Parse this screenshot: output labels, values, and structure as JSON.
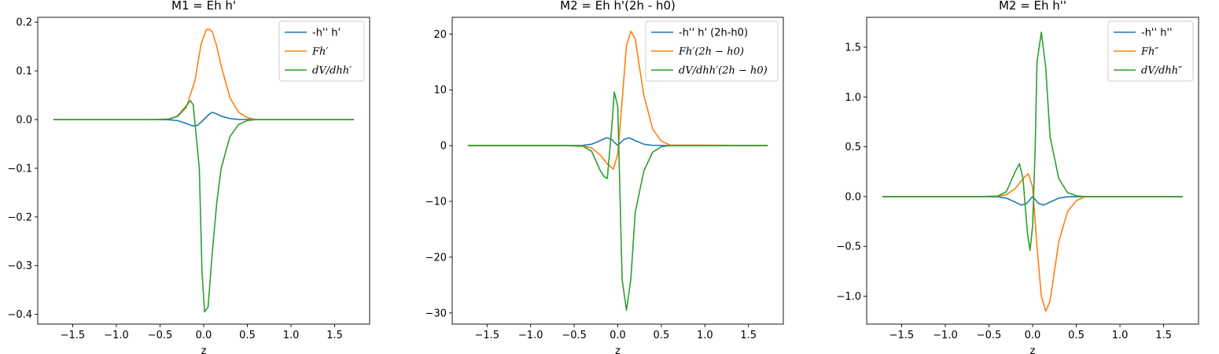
{
  "chart_data": [
    {
      "type": "line",
      "title": "M1 = Eh h'",
      "xlabel": "z",
      "ylabel": "",
      "xlim": [
        -1.9,
        1.9
      ],
      "ylim": [
        -0.42,
        0.21
      ],
      "xticks": [
        -1.5,
        -1.0,
        -0.5,
        0.0,
        0.5,
        1.0,
        1.5
      ],
      "xtick_labels": [
        "−1.5",
        "−1.0",
        "−0.5",
        "0.0",
        "0.5",
        "1.0",
        "1.5"
      ],
      "yticks": [
        -0.4,
        -0.3,
        -0.2,
        -0.1,
        0.0,
        0.1,
        0.2
      ],
      "ytick_labels": [
        "−0.4",
        "−0.3",
        "−0.2",
        "−0.1",
        "0.0",
        "0.1",
        "0.2"
      ],
      "legend_position": "top-right",
      "series": [
        {
          "name": "-h'' h'",
          "color": "#1f77b4",
          "x": [
            -1.72,
            -0.6,
            -0.4,
            -0.3,
            -0.2,
            -0.13,
            -0.07,
            0,
            0.07,
            0.1,
            0.13,
            0.2,
            0.3,
            0.4,
            0.6,
            1.72
          ],
          "y": [
            0,
            0,
            -0.0003,
            -0.002,
            -0.008,
            -0.013,
            -0.012,
            0,
            0.012,
            0.015,
            0.013,
            0.007,
            0.002,
            0.0003,
            0,
            0
          ]
        },
        {
          "name": "Fh′",
          "color": "#ff7f0e",
          "x": [
            -1.72,
            -0.6,
            -0.4,
            -0.3,
            -0.2,
            -0.1,
            -0.03,
            0.03,
            0.07,
            0.1,
            0.15,
            0.2,
            0.3,
            0.4,
            0.5,
            0.6,
            1.72
          ],
          "y": [
            0,
            0,
            0.001,
            0.006,
            0.025,
            0.08,
            0.155,
            0.185,
            0.185,
            0.18,
            0.15,
            0.11,
            0.045,
            0.015,
            0.004,
            0,
            0
          ]
        },
        {
          "name": "dV/dhh′",
          "color": "#2ca02c",
          "x": [
            -1.72,
            -0.6,
            -0.4,
            -0.3,
            -0.2,
            -0.15,
            -0.12,
            -0.05,
            -0.02,
            0.01,
            0.05,
            0.1,
            0.15,
            0.2,
            0.3,
            0.4,
            0.5,
            0.6,
            1.72
          ],
          "y": [
            0,
            0,
            0.001,
            0.007,
            0.028,
            0.039,
            0.03,
            -0.1,
            -0.31,
            -0.395,
            -0.385,
            -0.27,
            -0.17,
            -0.1,
            -0.035,
            -0.01,
            -0.002,
            0,
            0
          ]
        }
      ]
    },
    {
      "type": "line",
      "title": "M2 = Eh h'(2h - h0)",
      "xlabel": "z",
      "ylabel": "",
      "xlim": [
        -1.9,
        1.9
      ],
      "ylim": [
        -32,
        23
      ],
      "xticks": [
        -1.5,
        -1.0,
        -0.5,
        0.0,
        0.5,
        1.0,
        1.5
      ],
      "xtick_labels": [
        "−1.5",
        "−1.0",
        "−0.5",
        "0.0",
        "0.5",
        "1.0",
        "1.5"
      ],
      "yticks": [
        -30,
        -20,
        -10,
        0,
        10,
        20
      ],
      "ytick_labels": [
        "−30",
        "−20",
        "−10",
        "0",
        "10",
        "20"
      ],
      "legend_position": "top-right",
      "series": [
        {
          "name": "-h'' h' (2h-h0)",
          "color": "#1f77b4",
          "x": [
            -1.72,
            -0.6,
            -0.4,
            -0.3,
            -0.2,
            -0.13,
            -0.07,
            0,
            0.07,
            0.13,
            0.2,
            0.3,
            0.4,
            0.6,
            1.72
          ],
          "y": [
            0,
            0,
            0.05,
            0.25,
            0.9,
            1.4,
            1.1,
            0,
            1.1,
            1.4,
            0.9,
            0.25,
            0.05,
            0,
            0
          ]
        },
        {
          "name": "Fh′(2h − h0)",
          "color": "#ff7f0e",
          "x": [
            -1.72,
            -0.6,
            -0.4,
            -0.3,
            -0.2,
            -0.12,
            -0.05,
            0,
            0.05,
            0.1,
            0.15,
            0.2,
            0.25,
            0.3,
            0.4,
            0.5,
            0.6,
            1.72
          ],
          "y": [
            0,
            0,
            -0.05,
            -0.4,
            -1.7,
            -3.3,
            -4.2,
            -1.5,
            8,
            18,
            20.5,
            19.2,
            14,
            9,
            3,
            0.8,
            0.1,
            0
          ]
        },
        {
          "name": "dV/dhh′(2h − h0)",
          "color": "#2ca02c",
          "x": [
            -1.72,
            -0.6,
            -0.4,
            -0.3,
            -0.2,
            -0.16,
            -0.12,
            -0.07,
            -0.04,
            0,
            0.05,
            0.1,
            0.15,
            0.2,
            0.3,
            0.4,
            0.5,
            0.6,
            1.72
          ],
          "y": [
            0,
            0,
            -0.1,
            -1,
            -4.5,
            -5.5,
            -5.9,
            3,
            9.6,
            7,
            -24,
            -29.5,
            -24,
            -12,
            -4.5,
            -1.2,
            -0.2,
            0,
            0
          ]
        }
      ]
    },
    {
      "type": "line",
      "title": "M2 = Eh h''",
      "xlabel": "z",
      "ylabel": "",
      "xlim": [
        -1.9,
        1.9
      ],
      "ylim": [
        -1.28,
        1.8
      ],
      "xticks": [
        -1.5,
        -1.0,
        -0.5,
        0.0,
        0.5,
        1.0,
        1.5
      ],
      "xtick_labels": [
        "−1.5",
        "−1.0",
        "−0.5",
        "0.0",
        "0.5",
        "1.0",
        "1.5"
      ],
      "yticks": [
        -1.0,
        -0.5,
        0.0,
        0.5,
        1.0,
        1.5
      ],
      "ytick_labels": [
        "−1.0",
        "−0.5",
        "0.0",
        "0.5",
        "1.0",
        "1.5"
      ],
      "legend_position": "top-right",
      "series": [
        {
          "name": "-h'' h''",
          "color": "#1f77b4",
          "x": [
            -1.72,
            -0.6,
            -0.4,
            -0.3,
            -0.2,
            -0.13,
            -0.07,
            0,
            0.07,
            0.13,
            0.2,
            0.3,
            0.4,
            0.6,
            1.72
          ],
          "y": [
            0,
            0,
            -0.002,
            -0.015,
            -0.055,
            -0.085,
            -0.07,
            0,
            -0.07,
            -0.085,
            -0.055,
            -0.015,
            -0.002,
            0,
            0
          ]
        },
        {
          "name": "Fh″",
          "color": "#ff7f0e",
          "x": [
            -1.72,
            -0.6,
            -0.4,
            -0.3,
            -0.2,
            -0.1,
            -0.05,
            0,
            0.05,
            0.1,
            0.15,
            0.2,
            0.3,
            0.4,
            0.5,
            0.6,
            1.72
          ],
          "y": [
            0,
            0,
            0.003,
            0.02,
            0.08,
            0.19,
            0.23,
            0.1,
            -0.5,
            -1.0,
            -1.15,
            -1.05,
            -0.45,
            -0.15,
            -0.04,
            0,
            0
          ]
        },
        {
          "name": "dV/dhh″",
          "color": "#2ca02c",
          "x": [
            -1.72,
            -0.6,
            -0.4,
            -0.3,
            -0.2,
            -0.15,
            -0.11,
            -0.06,
            -0.03,
            0,
            0.03,
            0.05,
            0.1,
            0.15,
            0.2,
            0.3,
            0.4,
            0.5,
            0.6,
            1.72
          ],
          "y": [
            0,
            0,
            0.005,
            0.05,
            0.25,
            0.33,
            0.18,
            -0.36,
            -0.54,
            -0.3,
            0.5,
            1.35,
            1.65,
            1.3,
            0.6,
            0.18,
            0.04,
            0.008,
            0,
            0
          ]
        }
      ]
    }
  ]
}
